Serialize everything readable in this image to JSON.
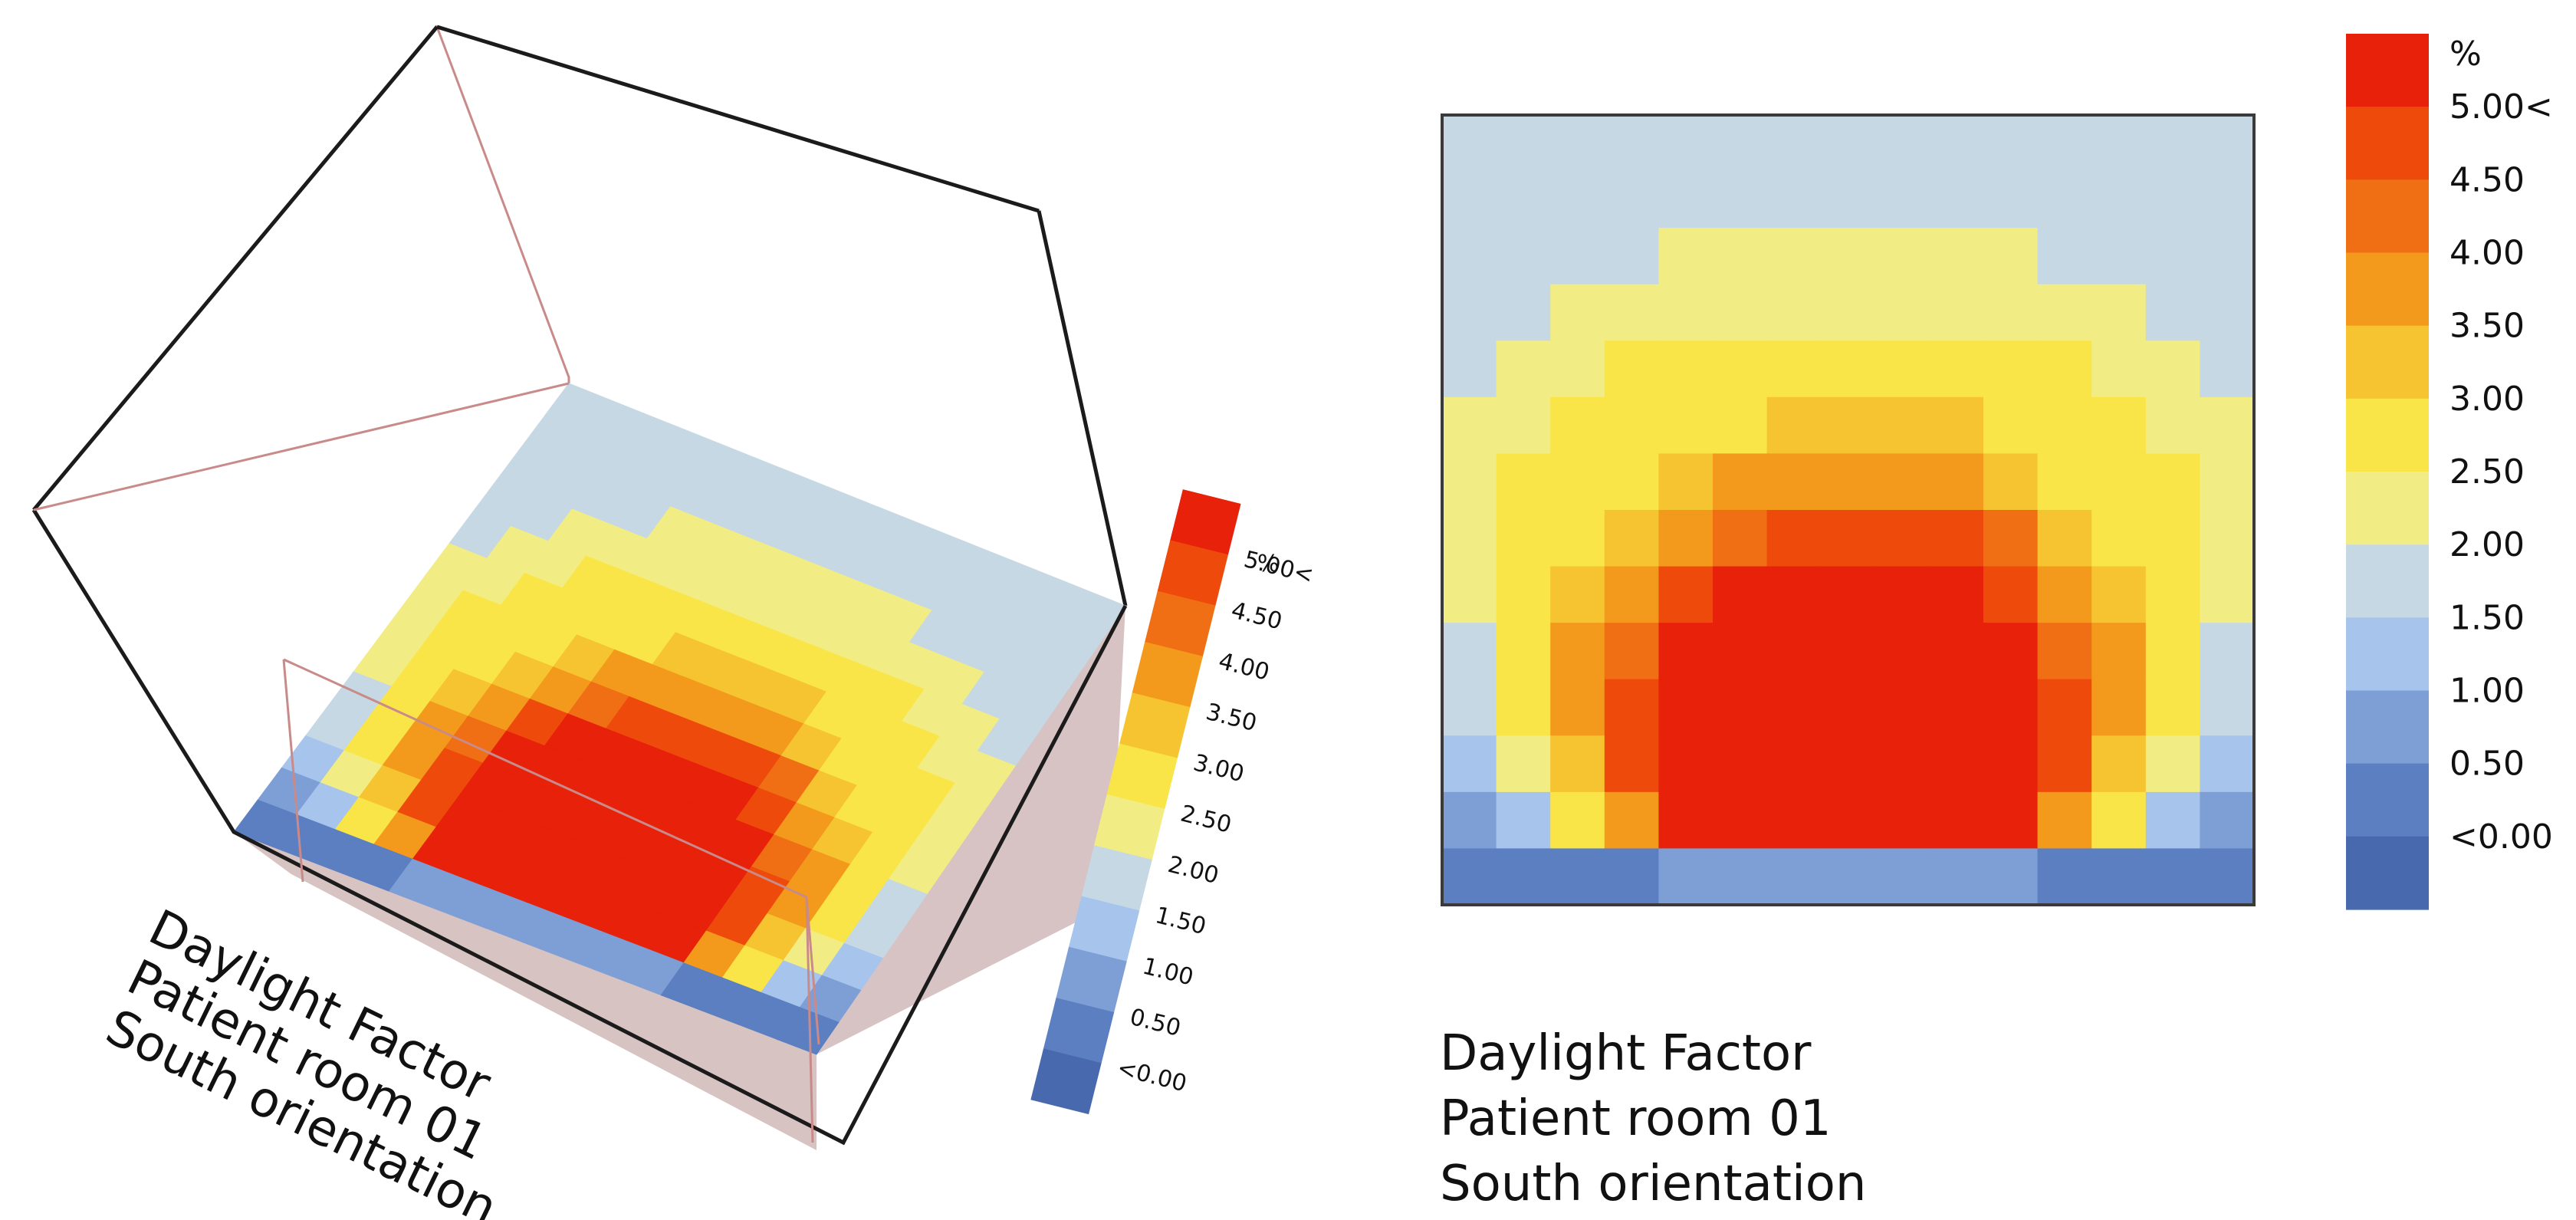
{
  "chart_data": [
    {
      "type": "heatmap",
      "view": "3d-perspective",
      "title_lines": [
        "Daylight Factor",
        "Patient room 01",
        "South orientation"
      ],
      "unit_label": "%",
      "scale_labels": [
        "5.00<",
        "4.50",
        "4.00",
        "3.50",
        "3.00",
        "2.50",
        "2.00",
        "1.50",
        "1.00",
        "0.50",
        "<0.00"
      ],
      "scale_colors": [
        "#e8210a",
        "#ee4a0c",
        "#f06e14",
        "#f39a1c",
        "#f6c430",
        "#f9e548",
        "#f2ec84",
        "#c6d8e4",
        "#a6c4ec",
        "#7d9fd6",
        "#5b7fc0",
        "#4869ad"
      ]
    },
    {
      "type": "heatmap",
      "view": "plan",
      "title_lines": [
        "Daylight Factor",
        "Patient room 01",
        "South orientation"
      ],
      "unit_label": "%",
      "scale_labels": [
        "5.00<",
        "4.50",
        "4.00",
        "3.50",
        "3.00",
        "2.50",
        "2.00",
        "1.50",
        "1.00",
        "0.50",
        "<0.00"
      ],
      "scale_colors": [
        "#e8210a",
        "#ee4a0c",
        "#f06e14",
        "#f39a1c",
        "#f6c430",
        "#f9e548",
        "#f2ec84",
        "#c6d8e4",
        "#a6c4ec",
        "#7d9fd6",
        "#5b7fc0",
        "#4869ad"
      ],
      "grid": [
        [
          7,
          7,
          7,
          7,
          7,
          7,
          7,
          7,
          7,
          7,
          7,
          7,
          7,
          7,
          7
        ],
        [
          7,
          7,
          7,
          7,
          7,
          7,
          7,
          7,
          7,
          7,
          7,
          7,
          7,
          7,
          7
        ],
        [
          7,
          7,
          7,
          7,
          6,
          6,
          6,
          6,
          6,
          6,
          6,
          7,
          7,
          7,
          7
        ],
        [
          7,
          7,
          6,
          6,
          6,
          6,
          6,
          6,
          6,
          6,
          6,
          6,
          6,
          7,
          7
        ],
        [
          7,
          6,
          6,
          5,
          5,
          5,
          5,
          5,
          5,
          5,
          5,
          5,
          6,
          6,
          7
        ],
        [
          6,
          6,
          5,
          5,
          5,
          5,
          4,
          4,
          4,
          4,
          5,
          5,
          5,
          6,
          6
        ],
        [
          6,
          5,
          5,
          5,
          4,
          3,
          3,
          3,
          3,
          3,
          4,
          5,
          5,
          5,
          6
        ],
        [
          6,
          5,
          5,
          4,
          3,
          2,
          1,
          1,
          1,
          1,
          2,
          4,
          5,
          5,
          6
        ],
        [
          6,
          5,
          4,
          3,
          1,
          0,
          0,
          0,
          0,
          0,
          1,
          3,
          4,
          5,
          6
        ],
        [
          7,
          5,
          3,
          2,
          0,
          0,
          0,
          0,
          0,
          0,
          0,
          2,
          3,
          5,
          7
        ],
        [
          7,
          5,
          3,
          1,
          0,
          0,
          0,
          0,
          0,
          0,
          0,
          1,
          3,
          5,
          7
        ],
        [
          8,
          6,
          4,
          1,
          0,
          0,
          0,
          0,
          0,
          0,
          0,
          1,
          4,
          6,
          8
        ],
        [
          9,
          8,
          5,
          3,
          0,
          0,
          0,
          0,
          0,
          0,
          0,
          3,
          5,
          8,
          9
        ],
        [
          10,
          10,
          10,
          10,
          9,
          9,
          9,
          9,
          9,
          9,
          9,
          10,
          10,
          10,
          10
        ]
      ]
    }
  ]
}
